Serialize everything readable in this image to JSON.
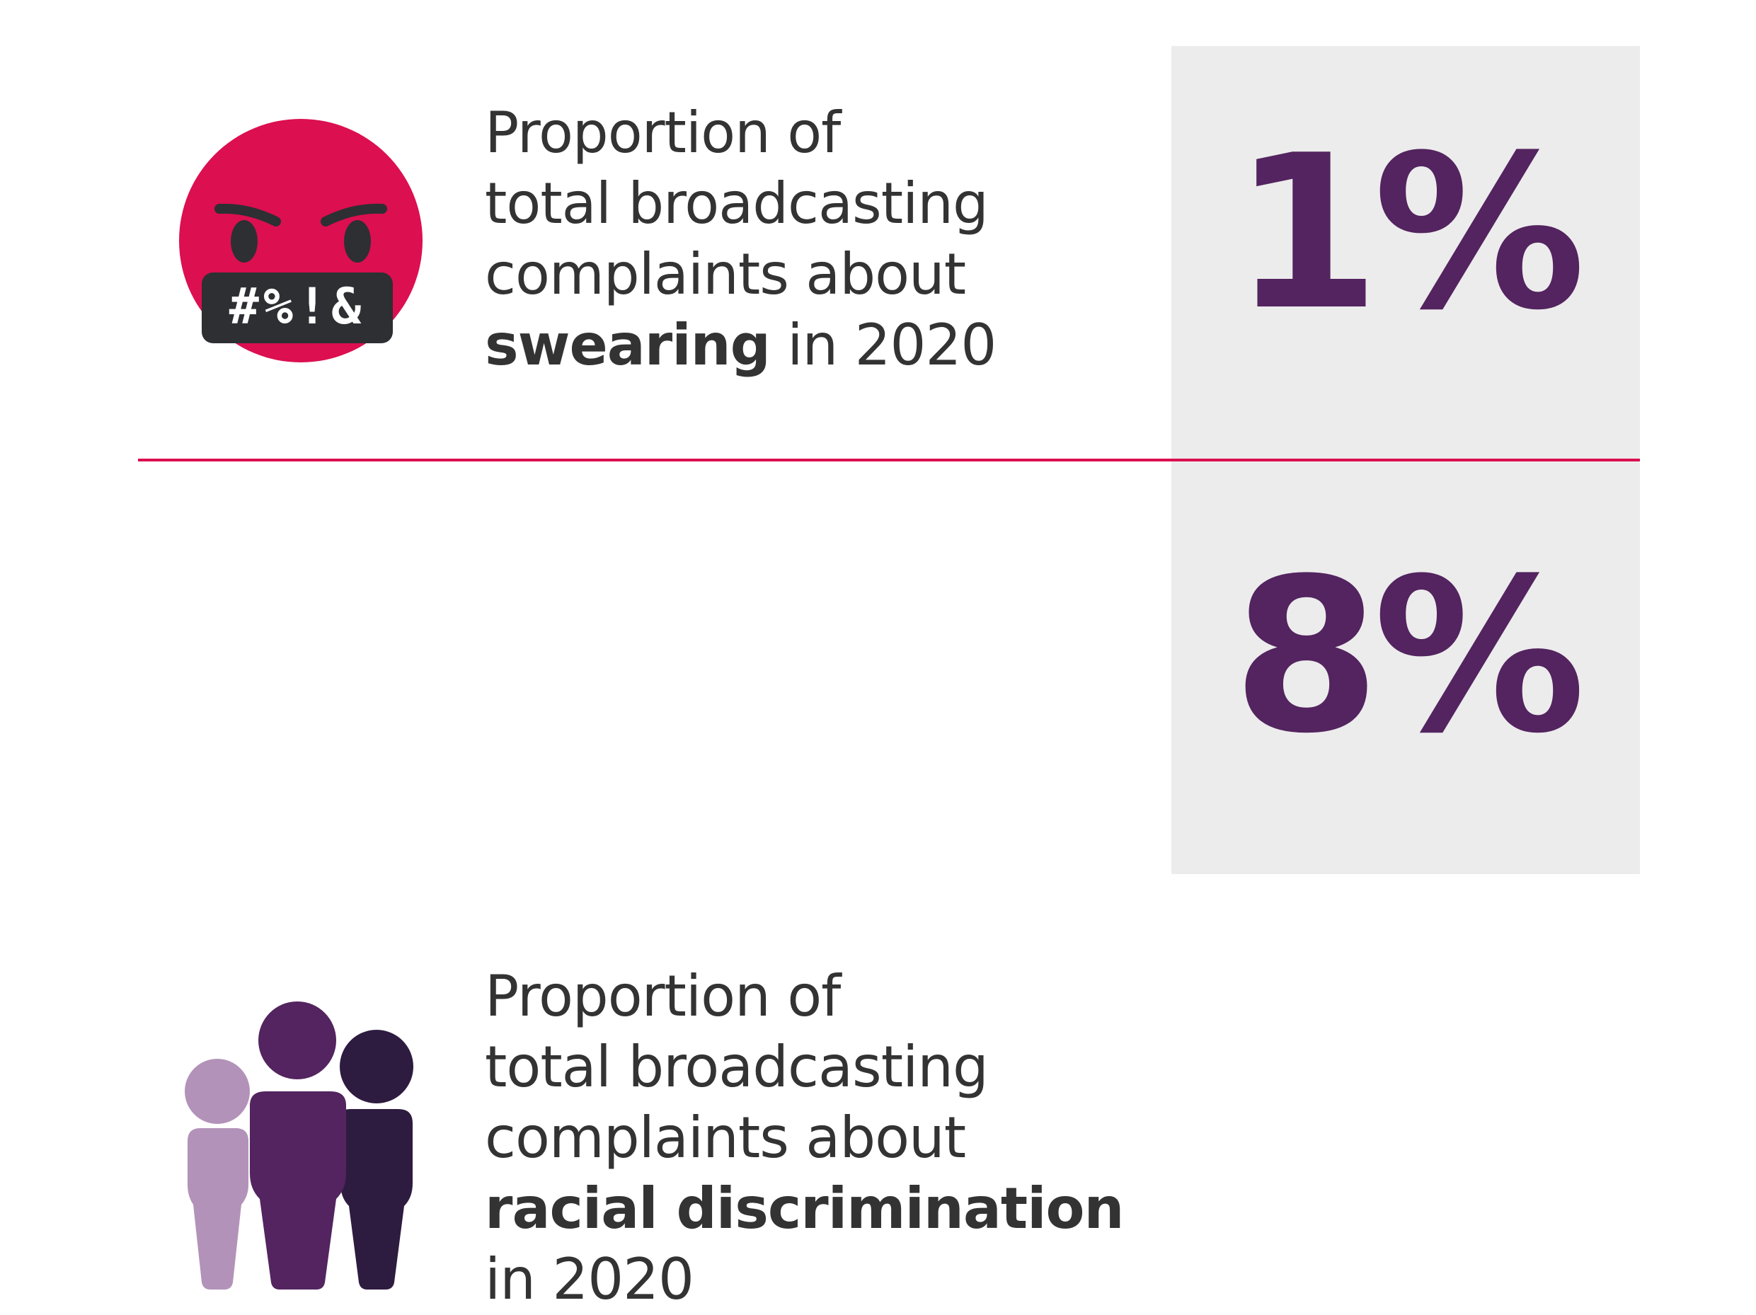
{
  "colors": {
    "accent_red": "#dc0f50",
    "value_purple": "#53245f",
    "panel_grey": "#ececec",
    "text_dark": "#333333",
    "person_light": "#b392b9",
    "person_mid": "#53245f",
    "person_dark": "#2e1b40"
  },
  "stats": [
    {
      "icon": "angry-swearing-face-icon",
      "icon_text": "#%!&",
      "label_lines": [
        "Proportion of",
        "total broadcasting",
        "complaints about"
      ],
      "label_bold": "swearing",
      "label_tail": " in 2020",
      "value": "1%"
    },
    {
      "icon": "group-of-people-icon",
      "label_lines": [
        "Proportion of",
        "total broadcasting",
        "complaints about"
      ],
      "label_bold": "racial discrimination",
      "label_tail": "in 2020",
      "value": "8%"
    }
  ]
}
